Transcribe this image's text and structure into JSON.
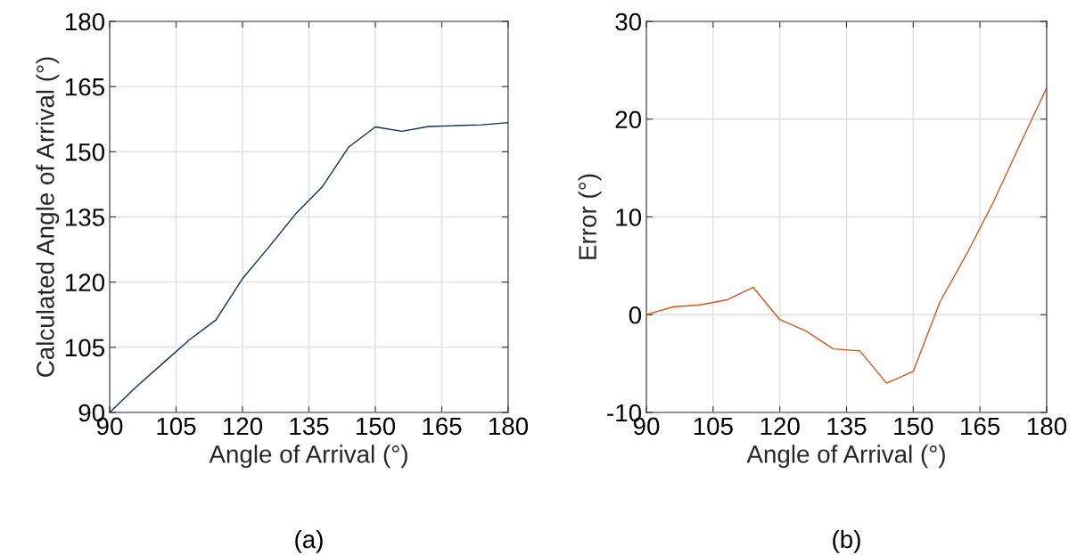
{
  "chart_data": [
    {
      "type": "line",
      "xlabel": "Angle of Arrival (°)",
      "ylabel": "Calculated Angle of Arrival (°)",
      "annotations": [
        "(a)"
      ],
      "x": [
        90,
        96,
        102,
        108,
        114,
        120,
        126,
        132,
        138,
        144,
        150,
        156,
        162,
        168,
        174,
        180
      ],
      "series": [
        {
          "color": "#0e2f5a",
          "values": [
            90,
            95.9,
            101.3,
            106.7,
            111.3,
            120.8,
            128.1,
            135.7,
            141.9,
            151.1,
            155.7,
            154.7,
            155.8,
            156.0,
            156.2,
            156.7
          ]
        }
      ],
      "xlim": [
        90,
        180
      ],
      "xticks": [
        90,
        105,
        120,
        135,
        150,
        165,
        180
      ],
      "ylim": [
        90,
        180
      ],
      "yticks": [
        90,
        105,
        120,
        135,
        150,
        165,
        180
      ],
      "grid": true
    },
    {
      "type": "line",
      "xlabel": "Angle of Arrival (°)",
      "ylabel": "Error (°)",
      "annotations": [
        "(b)"
      ],
      "x": [
        90,
        96,
        102,
        108,
        114,
        120,
        126,
        132,
        138,
        144,
        150,
        156,
        162,
        168,
        174,
        180
      ],
      "series": [
        {
          "color": "#d95319",
          "values": [
            0,
            0.8,
            1.0,
            1.5,
            2.8,
            -0.5,
            -1.7,
            -3.5,
            -3.7,
            -7.0,
            -5.8,
            1.3,
            6.2,
            11.5,
            17.4,
            23.2
          ]
        }
      ],
      "xlim": [
        90,
        180
      ],
      "xticks": [
        90,
        105,
        120,
        135,
        150,
        165,
        180
      ],
      "ylim": [
        -10,
        30
      ],
      "yticks": [
        -10,
        0,
        10,
        20,
        30
      ],
      "grid": true
    }
  ]
}
